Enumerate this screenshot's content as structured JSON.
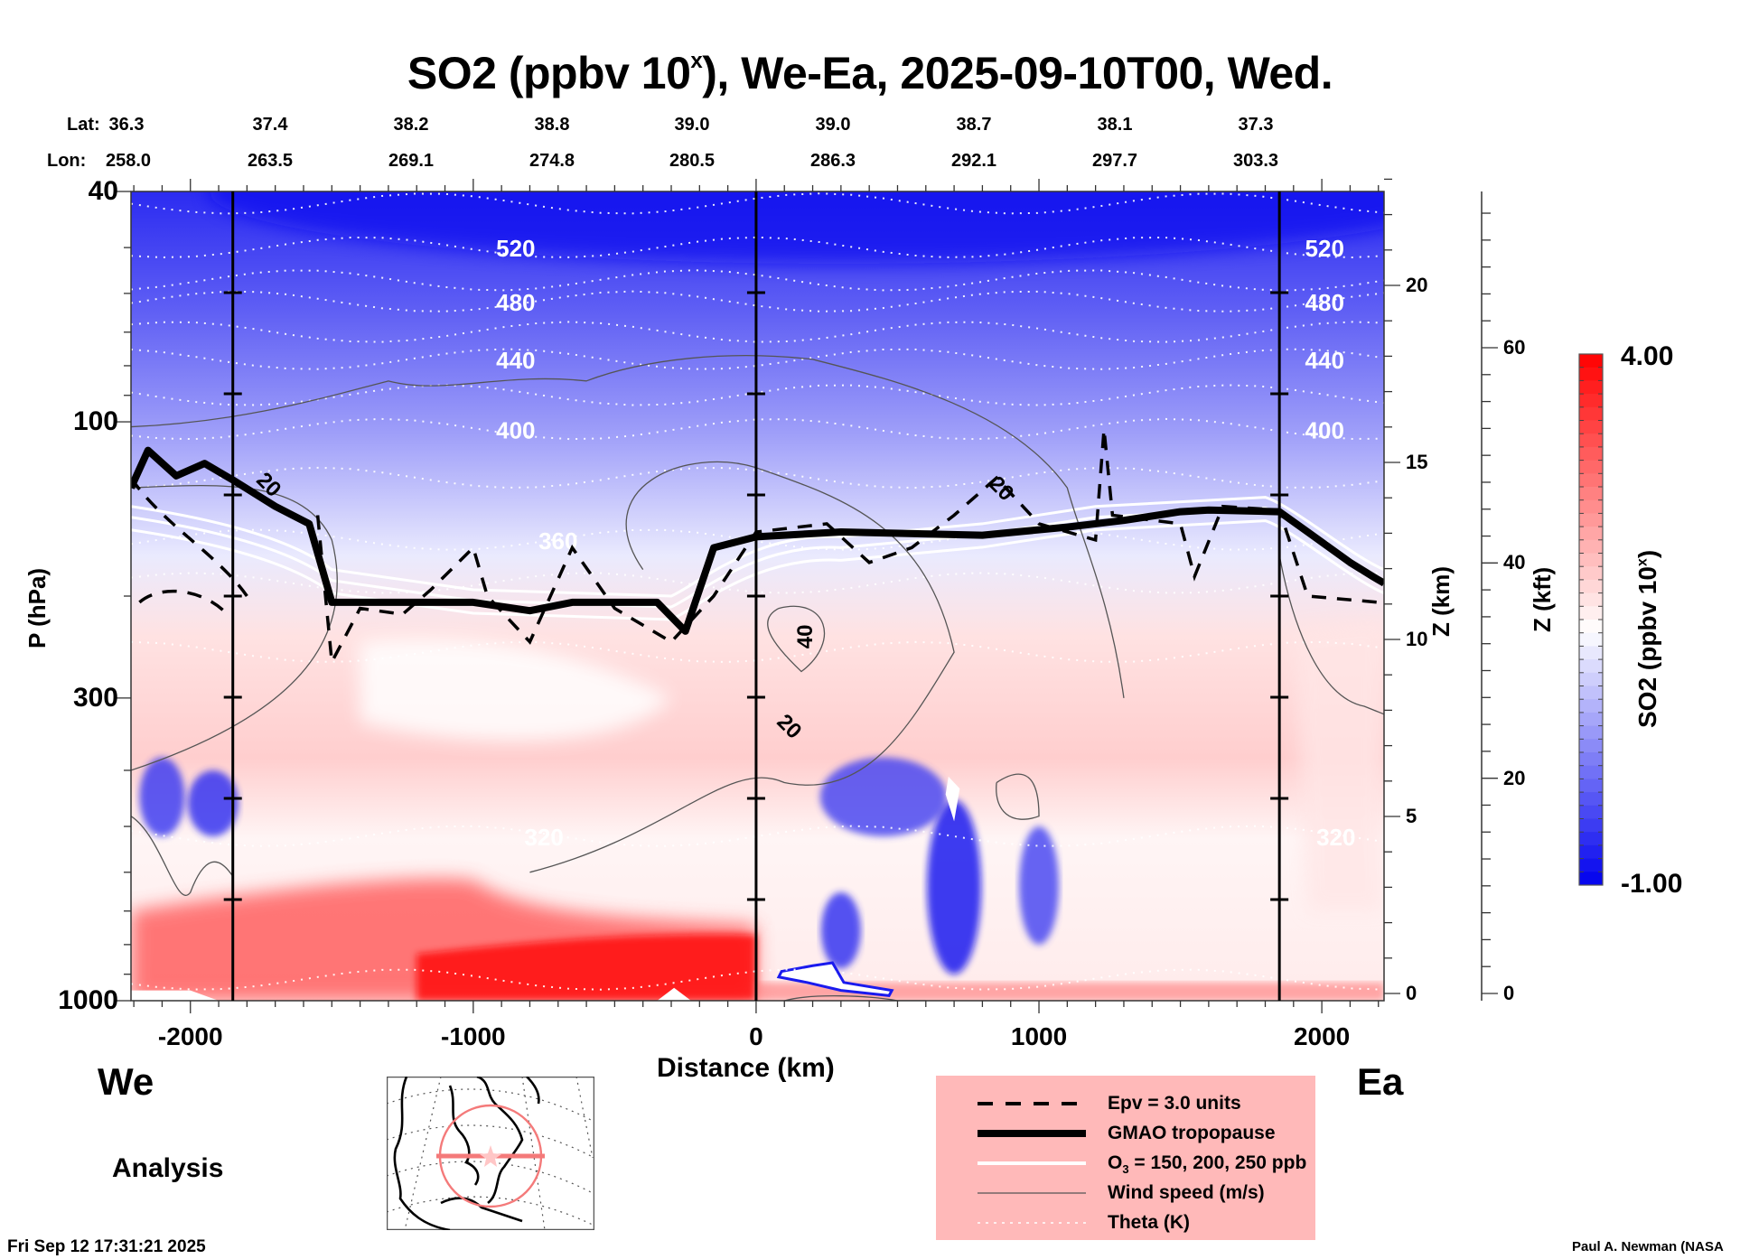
{
  "chart_data": {
    "type": "heatmap",
    "title_main": "SO2 (ppbv 10",
    "title_sup": "x",
    "title_rest": "), We-Ea, 2025-09-10T00, Wed.",
    "xlabel": "Distance (km)",
    "ylabel": "P (hPa)",
    "ylabel_right": "Z (km)",
    "ylabel_right2": "Z (kft)",
    "xlim": [
      -2210,
      2220
    ],
    "ylim_hpa": [
      1000,
      40
    ],
    "y_scale": "log",
    "x_ticks": [
      -2000,
      -1000,
      0,
      1000,
      2000
    ],
    "x_tick_labels": [
      "-2000",
      "-1000",
      "0",
      "1000",
      "2000"
    ],
    "p_ticks": [
      40,
      100,
      300,
      1000
    ],
    "p_tick_labels": [
      "40",
      "100",
      "300",
      "1000"
    ],
    "z_km_ticks": [
      0,
      5,
      10,
      15,
      20
    ],
    "z_km_tick_labels": [
      "0",
      "5",
      "10",
      "15",
      "20"
    ],
    "z_kft_ticks": [
      0,
      20,
      40,
      60
    ],
    "z_kft_tick_labels": [
      "0",
      "20",
      "40",
      "60"
    ],
    "vertical_markers_km": [
      -1850,
      0,
      1850
    ],
    "latlon_header": {
      "lat_label": "Lat:",
      "lon_label": "Lon:",
      "distances_km": [
        -2200,
        -1650,
        -1100,
        -550,
        0,
        550,
        1100,
        1650,
        2200
      ],
      "lat": [
        "36.3",
        "37.4",
        "38.2",
        "38.8",
        "39.0",
        "39.0",
        "38.7",
        "38.1",
        "37.3"
      ],
      "lon": [
        "258.0",
        "263.5",
        "269.1",
        "274.8",
        "280.5",
        "286.3",
        "292.1",
        "297.7",
        "303.3"
      ]
    },
    "colorbar": {
      "min": -1.0,
      "max": 4.0,
      "min_label": "-1.00",
      "max_label": "4.00",
      "label_main": "SO2 (ppbv 10",
      "label_sup": "x",
      "label_end": ")",
      "low_color": "#0000ee",
      "mid_color": "#ffffff",
      "high_color": "#ff0000",
      "levels": 40
    },
    "theta_contours": [
      {
        "label": "520",
        "p_hpa": 50
      },
      {
        "label": "480",
        "p_hpa": 62
      },
      {
        "label": "440",
        "p_hpa": 78
      },
      {
        "label": "400",
        "p_hpa": 103
      },
      {
        "label": "360",
        "p_hpa": 160
      },
      {
        "label": "320",
        "p_hpa": 520
      }
    ],
    "wind_speed_labels": [
      {
        "label": "20",
        "x_km": -1720,
        "p_hpa": 128
      },
      {
        "label": "20",
        "x_km": 870,
        "p_hpa": 130
      },
      {
        "label": "40",
        "x_km": 170,
        "p_hpa": 235
      },
      {
        "label": "20",
        "x_km": 120,
        "p_hpa": 335
      }
    ],
    "tropopause_p_hpa": {
      "x_km": [
        -2210,
        -2150,
        -2050,
        -1950,
        -1850,
        -1700,
        -1580,
        -1500,
        -1000,
        -800,
        -650,
        -600,
        -350,
        -250,
        -150,
        0,
        300,
        800,
        1100,
        1300,
        1500,
        1600,
        1850,
        1950,
        2100,
        2180,
        2220
      ],
      "p_hpa": [
        130,
        112,
        124,
        118,
        126,
        140,
        150,
        205,
        205,
        212,
        205,
        205,
        205,
        230,
        165,
        158,
        155,
        157,
        152,
        148,
        143,
        142,
        143,
        155,
        175,
        185,
        190
      ]
    },
    "so2_field_description": "Blue (negative log) aloft decreasing toward white near tropopause; red enhanced SO2 in lowest ~2 km west of 0 km; blue plumes near 700 km and 1000 km below 300 hPa"
  },
  "labels": {
    "west": "We",
    "east": "Ea",
    "analysis": "Analysis",
    "timestamp": "Fri Sep 12 17:31:21 2025",
    "credit": "Paul A. Newman (NASA"
  },
  "legend": {
    "items": [
      {
        "label": "Epv = 3.0 units",
        "style": "dashed"
      },
      {
        "label": "GMAO tropopause",
        "style": "thick"
      },
      {
        "label_pre": "O",
        "label_sub": "3",
        "label_post": " = 150, 200, 250 ppb",
        "style": "white"
      },
      {
        "label": "Wind speed (m/s)",
        "style": "thin"
      },
      {
        "label": "Theta (K)",
        "style": "dotted"
      }
    ]
  },
  "colors": {
    "legend_bg": "#ffb9b9",
    "map_track": "#f47a7a"
  }
}
